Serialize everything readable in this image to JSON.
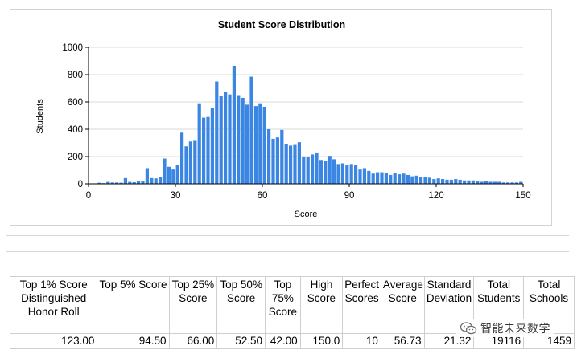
{
  "colors": {
    "bar": "#3b86e3",
    "axis": "#000000",
    "grid": "#d9d9d9"
  },
  "chart_data": {
    "type": "bar",
    "title": "Student Score Distribution",
    "xlabel": "Score",
    "ylabel": "Students",
    "xlim": [
      0,
      150
    ],
    "ylim": [
      0,
      1000
    ],
    "x_ticks": [
      "0",
      "30",
      "60",
      "90",
      "120",
      "150"
    ],
    "y_ticks": [
      "0",
      "200",
      "400",
      "600",
      "800",
      "1000"
    ],
    "grid": true,
    "bin_width": 1.5,
    "x": [
      0.75,
      2.25,
      3.75,
      5.25,
      6.75,
      8.25,
      9.75,
      11.25,
      12.75,
      14.25,
      15.75,
      17.25,
      18.75,
      20.25,
      21.75,
      23.25,
      24.75,
      26.25,
      27.75,
      29.25,
      30.75,
      32.25,
      33.75,
      35.25,
      36.75,
      38.25,
      39.75,
      41.25,
      42.75,
      44.25,
      45.75,
      47.25,
      48.75,
      50.25,
      51.75,
      53.25,
      54.75,
      56.25,
      57.75,
      59.25,
      60.75,
      62.25,
      63.75,
      65.25,
      66.75,
      68.25,
      69.75,
      71.25,
      72.75,
      74.25,
      75.75,
      77.25,
      78.75,
      80.25,
      81.75,
      83.25,
      84.75,
      86.25,
      87.75,
      89.25,
      90.75,
      92.25,
      93.75,
      95.25,
      96.75,
      98.25,
      99.75,
      101.25,
      102.75,
      104.25,
      105.75,
      107.25,
      108.75,
      110.25,
      111.75,
      113.25,
      114.75,
      116.25,
      117.75,
      119.25,
      120.75,
      122.25,
      123.75,
      125.25,
      126.75,
      128.25,
      129.75,
      131.25,
      132.75,
      134.25,
      135.75,
      137.25,
      138.75,
      140.25,
      141.75,
      143.25,
      144.75,
      146.25,
      147.75,
      149.25
    ],
    "values": [
      0,
      0,
      8,
      5,
      14,
      10,
      10,
      8,
      42,
      14,
      12,
      22,
      18,
      115,
      42,
      40,
      50,
      185,
      125,
      105,
      140,
      375,
      275,
      310,
      315,
      590,
      485,
      490,
      555,
      750,
      645,
      675,
      655,
      865,
      650,
      630,
      580,
      785,
      570,
      590,
      565,
      400,
      330,
      340,
      395,
      290,
      280,
      285,
      305,
      195,
      200,
      215,
      230,
      175,
      170,
      205,
      180,
      145,
      150,
      140,
      145,
      135,
      105,
      115,
      95,
      75,
      85,
      85,
      80,
      65,
      80,
      70,
      75,
      65,
      55,
      60,
      50,
      50,
      45,
      35,
      40,
      35,
      30,
      30,
      35,
      30,
      25,
      25,
      25,
      20,
      15,
      20,
      15,
      15,
      15,
      10,
      10,
      10,
      10,
      15
    ]
  },
  "stats": {
    "headers": [
      "Top 1% Score Distinguished Honor Roll",
      "Top 5% Score",
      "Top 25% Score",
      "Top 50% Score",
      "Top 75% Score",
      "High Score",
      "Perfect Scores",
      "Average Score",
      "Standard Deviation",
      "Total Students",
      "Total Schools"
    ],
    "values": [
      "123.00",
      "94.50",
      "66.00",
      "52.50",
      "42.00",
      "150.0",
      "10",
      "56.73",
      "21.32",
      "19116",
      "1459"
    ]
  },
  "watermark": {
    "text": "智能未来数学",
    "icon": "wechat-icon"
  }
}
